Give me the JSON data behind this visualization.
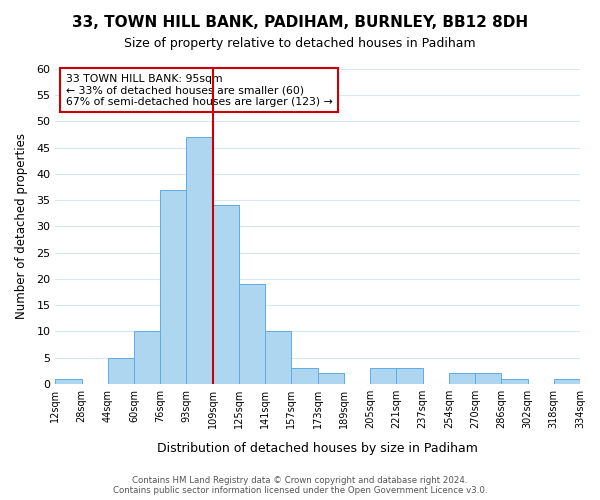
{
  "title": "33, TOWN HILL BANK, PADIHAM, BURNLEY, BB12 8DH",
  "subtitle": "Size of property relative to detached houses in Padiham",
  "xlabel": "Distribution of detached houses by size in Padiham",
  "ylabel": "Number of detached properties",
  "bin_labels": [
    "12sqm",
    "28sqm",
    "44sqm",
    "60sqm",
    "76sqm",
    "93sqm",
    "109sqm",
    "125sqm",
    "141sqm",
    "157sqm",
    "173sqm",
    "189sqm",
    "205sqm",
    "221sqm",
    "237sqm",
    "254sqm",
    "270sqm",
    "286sqm",
    "302sqm",
    "318sqm",
    "334sqm"
  ],
  "bar_values": [
    1,
    0,
    5,
    10,
    37,
    47,
    34,
    19,
    10,
    3,
    2,
    0,
    3,
    3,
    0,
    2,
    2,
    1,
    0,
    1
  ],
  "bar_color": "#aed6f1",
  "bar_edge_color": "#5dade2",
  "vline_position": 5.5,
  "ylim": [
    0,
    60
  ],
  "yticks": [
    0,
    5,
    10,
    15,
    20,
    25,
    30,
    35,
    40,
    45,
    50,
    55,
    60
  ],
  "annotation_title": "33 TOWN HILL BANK: 95sqm",
  "annotation_line1": "← 33% of detached houses are smaller (60)",
  "annotation_line2": "67% of semi-detached houses are larger (123) →",
  "annotation_box_color": "#ffffff",
  "annotation_box_edge": "#cc0000",
  "vline_color": "#cc0000",
  "footer_line1": "Contains HM Land Registry data © Crown copyright and database right 2024.",
  "footer_line2": "Contains public sector information licensed under the Open Government Licence v3.0.",
  "background_color": "#ffffff",
  "grid_color": "#d4e8f5"
}
